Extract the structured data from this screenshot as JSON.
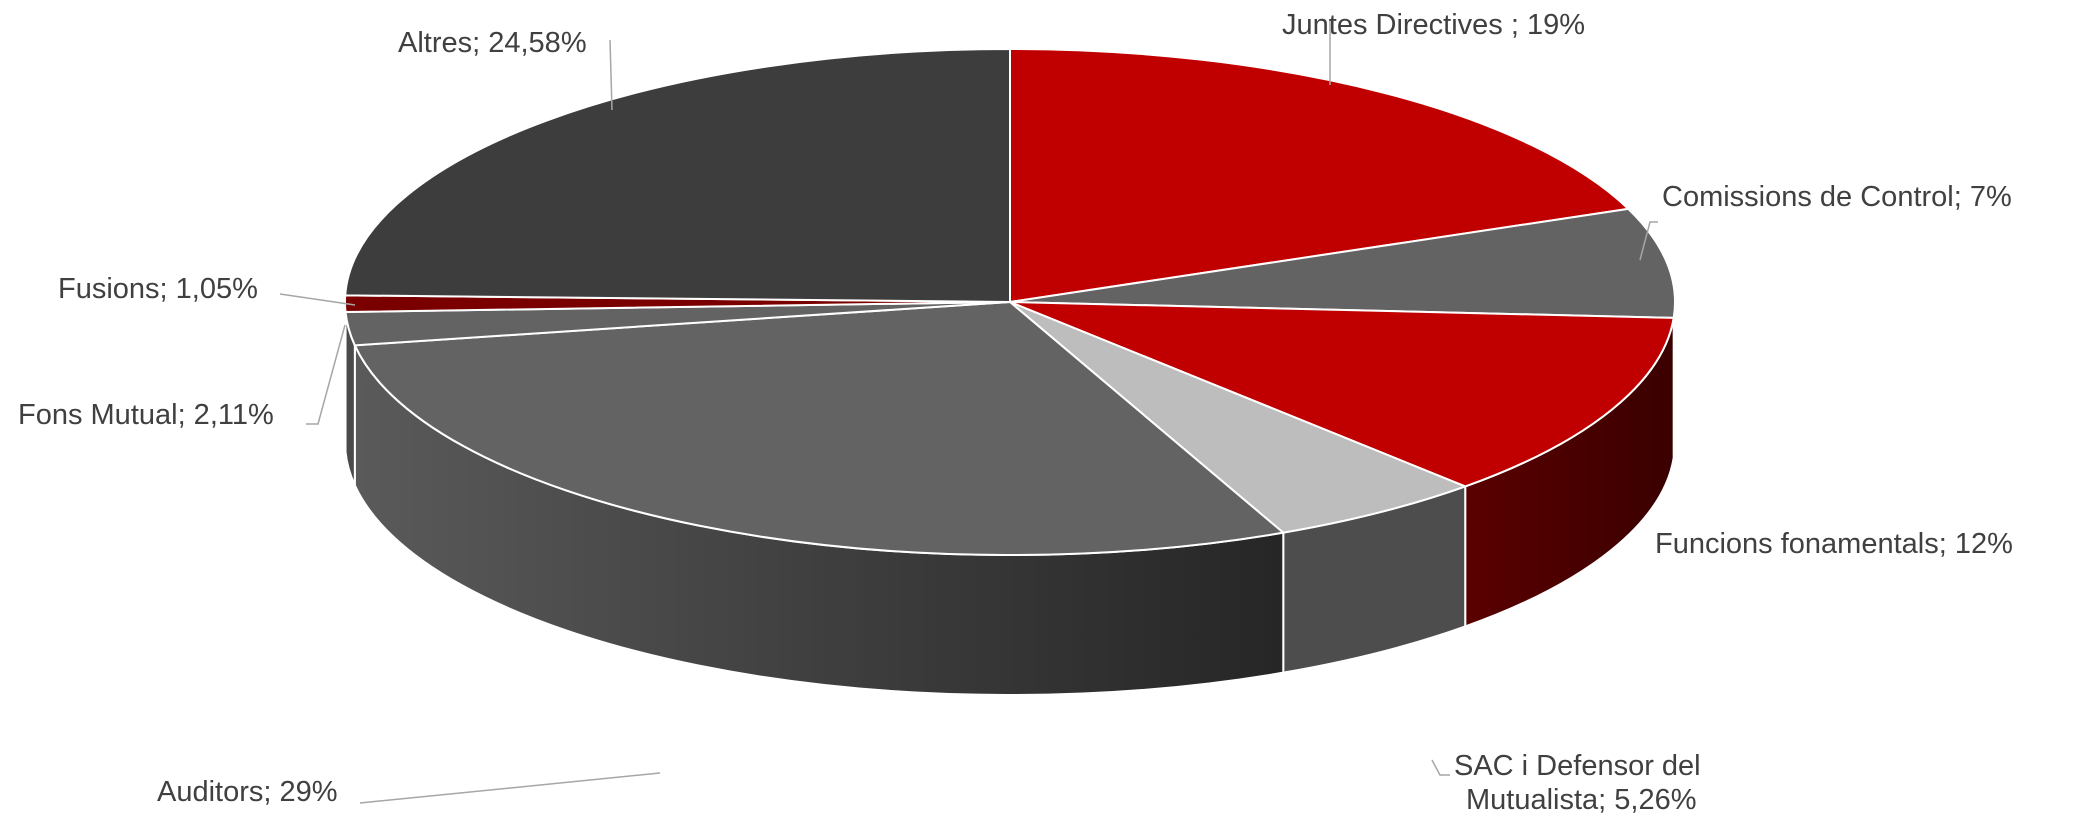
{
  "chart_data": {
    "type": "pie",
    "style": "3d",
    "legend": "none",
    "slices": [
      {
        "label": "Juntes Directives ",
        "value": 19,
        "display": "19%",
        "color": "#c00000",
        "side": "#7a0000",
        "text": "Juntes Directives ; 19%"
      },
      {
        "label": "Comissions de Control",
        "value": 7,
        "display": "7%",
        "color": "#636363",
        "side": "#4a4a4a",
        "text": "Comissions de Control; 7%"
      },
      {
        "label": "Funcions fonamentals",
        "value": 12,
        "display": "12%",
        "color": "#c00000",
        "side": "#4d0000",
        "text": "Funcions fonamentals; 12%"
      },
      {
        "label": "SAC i Defensor del Mutualista",
        "value": 5.26,
        "display": "5,26%",
        "color": "#bdbdbd",
        "side": "#4d4d4d",
        "text1": "SAC i Defensor del",
        "text2": "Mutualista; 5,26%"
      },
      {
        "label": "Auditors",
        "value": 29,
        "display": "29%",
        "color": "#636363",
        "side": "#3a3a3a",
        "text": "Auditors; 29%"
      },
      {
        "label": "Fons Mutual",
        "value": 2.11,
        "display": "2,11%",
        "color": "#636363",
        "side": "#4a4a4a",
        "text": "Fons Mutual; 2,11%"
      },
      {
        "label": "Fusions",
        "value": 1.05,
        "display": "1,05%",
        "color": "#7a0000",
        "side": "#4d0000",
        "text": "Fusions; 1,05%"
      },
      {
        "label": "Altres",
        "value": 24.58,
        "display": "24,58%",
        "color": "#3d3d3d",
        "side": "#2a2a2a",
        "text": "Altres; 24,58%"
      }
    ]
  }
}
